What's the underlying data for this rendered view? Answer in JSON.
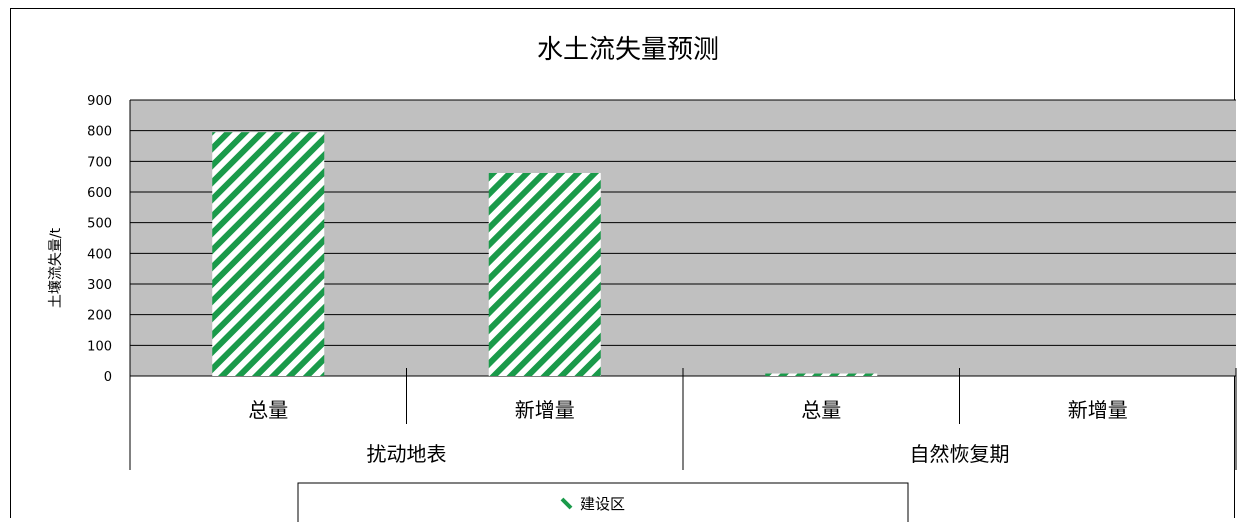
{
  "chart_data": {
    "type": "bar",
    "title": "水土流失量预测",
    "ylabel": "土壤流失量/t",
    "xlabel": "",
    "ylim": [
      0,
      900
    ],
    "yticks": [
      0,
      100,
      200,
      300,
      400,
      500,
      600,
      700,
      800,
      900
    ],
    "grid": true,
    "categories": [
      "总量",
      "新增量",
      "总量",
      "新增量"
    ],
    "groups": [
      {
        "label": "扰动地表",
        "categories": [
          "总量",
          "新增量"
        ]
      },
      {
        "label": "自然恢复期",
        "categories": [
          "总量",
          "新增量"
        ]
      }
    ],
    "series": [
      {
        "name": "建设区",
        "values": [
          795,
          662,
          8,
          0
        ]
      }
    ],
    "colors": {
      "plot_bg": "#c0c0c0",
      "bar_stripe": "#1a9a4a",
      "bar_bg": "#ffffff"
    },
    "legend_placement": "bottom"
  }
}
